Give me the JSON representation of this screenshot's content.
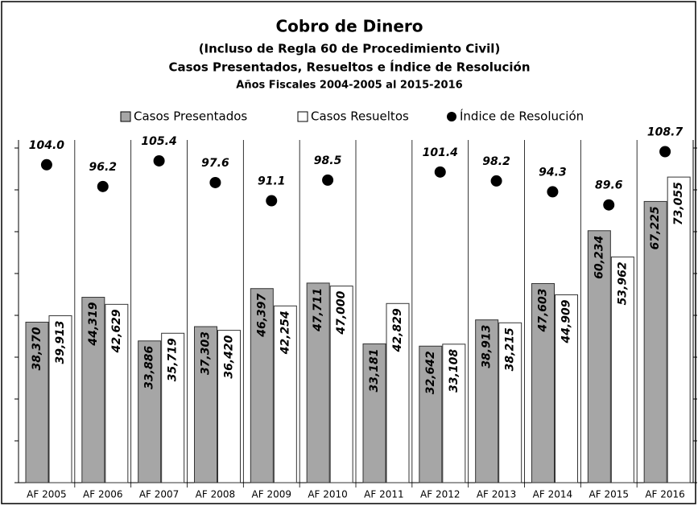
{
  "chart_data": {
    "type": "bar",
    "title": "Cobro de Dinero",
    "subtitle": [
      "(Incluso de Regla 60 de Procedimiento Civil)",
      "Casos Presentados, Resueltos e Índice de Resolución",
      "Años Fiscales 2004-2005 al 2015-2016"
    ],
    "categories": [
      "AF 2005",
      "AF 2006",
      "AF 2007",
      "AF 2008",
      "AF 2009",
      "AF 2010",
      "AF 2011",
      "AF 2012",
      "AF 2013",
      "AF 2014",
      "AF 2015",
      "AF 2016"
    ],
    "series": [
      {
        "name": "Casos Presentados",
        "color": "#a6a6a6",
        "values": [
          38370,
          44319,
          33886,
          37303,
          46397,
          47711,
          33181,
          32642,
          38913,
          47603,
          60234,
          67225
        ],
        "value_labels": [
          "38,370",
          "44,319",
          "33,886",
          "37,303",
          "46,397",
          "47,711",
          "33,181",
          "32,642",
          "38,913",
          "47,603",
          "60,234",
          "67,225"
        ]
      },
      {
        "name": "Casos Resueltos",
        "color": "#ffffff",
        "values": [
          39913,
          42629,
          35719,
          36420,
          42254,
          47000,
          42829,
          33108,
          38215,
          44909,
          53962,
          73055
        ],
        "value_labels": [
          "39,913",
          "42,629",
          "35,719",
          "36,420",
          "42,254",
          "47,000",
          "42,829",
          "33,108",
          "38,215",
          "44,909",
          "53,962",
          "73,055"
        ]
      },
      {
        "name": "Índice de Resolución",
        "color": "#000000",
        "type": "scatter",
        "axis": "y2",
        "values": [
          104.0,
          96.2,
          105.4,
          97.6,
          91.1,
          98.5,
          null,
          101.4,
          98.2,
          94.3,
          89.6,
          108.7
        ],
        "value_labels": [
          "104.0",
          "96.2",
          "105.4",
          "97.6",
          "91.1",
          "98.5",
          null,
          "101.4",
          "98.2",
          "94.3",
          "89.6",
          "108.7"
        ]
      }
    ],
    "ylim": [
      0,
      80000
    ],
    "yticks": [
      0,
      10000,
      20000,
      30000,
      40000,
      50000,
      60000,
      70000,
      80000
    ],
    "y2lim": [
      -10,
      110
    ],
    "y2ticks": [
      -10,
      5,
      20,
      35,
      50,
      65,
      80,
      95,
      110
    ],
    "legend": "top"
  }
}
